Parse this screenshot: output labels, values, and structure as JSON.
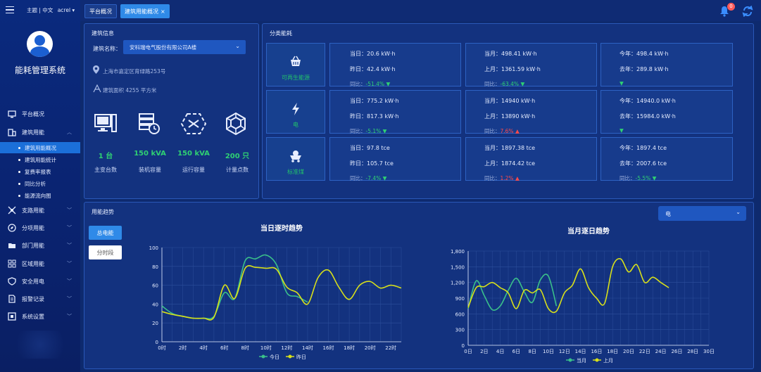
{
  "app": {
    "title": "能耗管理系统",
    "top_links": "主题 | 中文",
    "user": "acrel"
  },
  "tabs": [
    {
      "label": "平台概况"
    },
    {
      "label": "建筑用能概况",
      "close": "×"
    }
  ],
  "notify_count": "0",
  "menu": [
    {
      "label": "平台概况",
      "icon": "monitor-icon"
    },
    {
      "label": "建筑用能",
      "icon": "building-icon"
    },
    {
      "label": "支路用能",
      "icon": "branch-icon"
    },
    {
      "label": "分项用能",
      "icon": "compass-icon"
    },
    {
      "label": "部门用能",
      "icon": "folder-icon"
    },
    {
      "label": "区域用能",
      "icon": "region-icon"
    },
    {
      "label": "安全用电",
      "icon": "shield-icon"
    },
    {
      "label": "报警记录",
      "icon": "document-icon"
    },
    {
      "label": "系统设置",
      "icon": "settings-icon"
    }
  ],
  "submenu": [
    "建筑用能概况",
    "建筑用能统计",
    "复费率报表",
    "同比分析",
    "能源流向图"
  ],
  "building": {
    "title": "建筑信息",
    "name_label": "建筑名称：",
    "name_value": "安科瑞电气股份有限公司A楼",
    "address": "上海市嘉定区育绿路253号",
    "area": "建筑面积 4255 平方米",
    "stats": [
      {
        "value": "1 台",
        "label": "主变台数"
      },
      {
        "value": "150 kVA",
        "label": "装机容量"
      },
      {
        "value": "150 kVA",
        "label": "运行容量"
      },
      {
        "value": "200 只",
        "label": "计量点数"
      }
    ]
  },
  "category": {
    "title": "分类能耗",
    "rows": [
      {
        "name": "可再生能源",
        "icon": "basket-icon",
        "day": [
          "当日：20.6 kW·h",
          "昨日：42.4 kW·h",
          "同比：-51.4%"
        ],
        "month": [
          "当月：498.41 kW·h",
          "上月：1361.59 kW·h",
          "同比：-63.4%"
        ],
        "year": [
          "今年：498.4 kW·h",
          "去年：289.8 kW·h",
          ""
        ],
        "d_dir": "down",
        "m_dir": "down",
        "y_dir": "down"
      },
      {
        "name": "电",
        "icon": "bolt-icon",
        "day": [
          "当日：775.2 kW·h",
          "昨日：817.3 kW·h",
          "同比：-5.1%"
        ],
        "month": [
          "当月：14940 kW·h",
          "上月：13890 kW·h",
          "同比：7.6%"
        ],
        "year": [
          "今年：14940.0 kW·h",
          "去年：15984.0 kW·h",
          ""
        ],
        "d_dir": "down",
        "m_dir": "up",
        "y_dir": "down"
      },
      {
        "name": "标准煤",
        "icon": "coal-cart-icon",
        "day": [
          "当日：97.8 tce",
          "昨日：105.7 tce",
          "同比：-7.4%"
        ],
        "month": [
          "当月：1897.38 tce",
          "上月：1874.42 tce",
          "同比：1.2%"
        ],
        "year": [
          "今年：1897.4 tce",
          "去年：2007.6 tce",
          "同比：-5.5%"
        ],
        "d_dir": "down",
        "m_dir": "up",
        "y_dir": "down"
      }
    ]
  },
  "trend": {
    "title": "用能趋势",
    "select": "电",
    "btn_total": "总电能",
    "btn_period": "分时段"
  },
  "chart_data": [
    {
      "type": "line",
      "title": "当日逐时趋势",
      "ylim": [
        0,
        100
      ],
      "yticks": [
        0,
        20,
        40,
        60,
        80,
        100
      ],
      "x": [
        "0时",
        "1时",
        "2时",
        "3时",
        "4时",
        "5时",
        "6时",
        "7时",
        "8时",
        "9时",
        "10时",
        "11时",
        "12时",
        "13时",
        "14时",
        "15时",
        "16时",
        "17时",
        "18时",
        "19时",
        "20时",
        "21时",
        "22时",
        "23时"
      ],
      "xtick_labels": [
        "0时",
        "2时",
        "4时",
        "6时",
        "8时",
        "10时",
        "12时",
        "14时",
        "16时",
        "18时",
        "20时",
        "22时"
      ],
      "series": [
        {
          "name": "今日",
          "color": "#3ac08a",
          "values": [
            38,
            30,
            27,
            25,
            25,
            27,
            52,
            46,
            86,
            88,
            92,
            82,
            52,
            48,
            42,
            null,
            null,
            null,
            null,
            null,
            null,
            null,
            null,
            null
          ]
        },
        {
          "name": "昨日",
          "color": "#d8e01a",
          "values": [
            32,
            29,
            27,
            25,
            25,
            26,
            60,
            46,
            78,
            79,
            78,
            77,
            58,
            52,
            40,
            68,
            76,
            58,
            45,
            60,
            64,
            57,
            60,
            57
          ]
        }
      ]
    },
    {
      "type": "line",
      "title": "当月逐日趋势",
      "ylim": [
        0,
        1800
      ],
      "yticks": [
        0,
        300,
        600,
        900,
        1200,
        1500,
        1800
      ],
      "ytick_labels": [
        "0",
        "300",
        "600",
        "900",
        "1,200",
        "1,500",
        "1,800"
      ],
      "x": [
        "0日",
        "1日",
        "2日",
        "3日",
        "4日",
        "5日",
        "6日",
        "7日",
        "8日",
        "9日",
        "10日",
        "11日",
        "12日",
        "13日",
        "14日",
        "15日",
        "16日",
        "17日",
        "18日",
        "19日",
        "20日",
        "21日",
        "22日",
        "23日",
        "24日",
        "25日",
        "26日",
        "27日",
        "28日",
        "29日",
        "30日"
      ],
      "xtick_labels": [
        "0日",
        "2日",
        "4日",
        "6日",
        "8日",
        "10日",
        "12日",
        "14日",
        "16日",
        "18日",
        "20日",
        "22日",
        "24日",
        "26日",
        "28日",
        "30日"
      ],
      "series": [
        {
          "name": "当月",
          "color": "#3ac08a",
          "values": [
            700,
            1230,
            950,
            680,
            750,
            1050,
            1280,
            1020,
            820,
            1250,
            1320,
            750,
            null,
            null,
            null,
            null,
            null,
            null,
            null,
            null,
            null,
            null,
            null,
            null,
            null,
            null,
            null,
            null,
            null,
            null,
            null
          ]
        },
        {
          "name": "上月",
          "color": "#d8e01a",
          "values": [
            720,
            1100,
            1120,
            1200,
            1100,
            1000,
            700,
            1050,
            1000,
            1060,
            700,
            650,
            1000,
            1150,
            1460,
            1100,
            900,
            800,
            1500,
            1650,
            1400,
            1540,
            1200,
            1300,
            1200,
            1100,
            null,
            null,
            null,
            null,
            null
          ]
        }
      ]
    }
  ]
}
